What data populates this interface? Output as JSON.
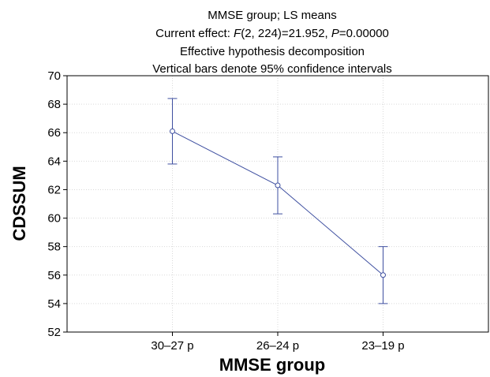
{
  "chart_data": {
    "type": "line",
    "title_lines": [
      "MMSE group; LS means",
      "Current effect: F(2, 224)=21.952, P=0.00000",
      "Effective hypothesis decomposition",
      "Vertical bars denote 95% confidence intervals"
    ],
    "xlabel": "MMSE group",
    "ylabel": "CDSSUM",
    "categories": [
      "30–27 p",
      "26–24 p",
      "23–19 p"
    ],
    "series": [
      {
        "values": [
          66.1,
          62.3,
          56.0
        ],
        "ci_lower": [
          63.8,
          60.3,
          54.0
        ],
        "ci_upper": [
          68.4,
          64.3,
          58.0
        ]
      }
    ],
    "ylim": [
      52,
      70
    ],
    "yticks": [
      "52",
      "54",
      "56",
      "58",
      "60",
      "62",
      "64",
      "66",
      "68",
      "70"
    ],
    "grid": true,
    "line_color": "#3e4fa0"
  }
}
